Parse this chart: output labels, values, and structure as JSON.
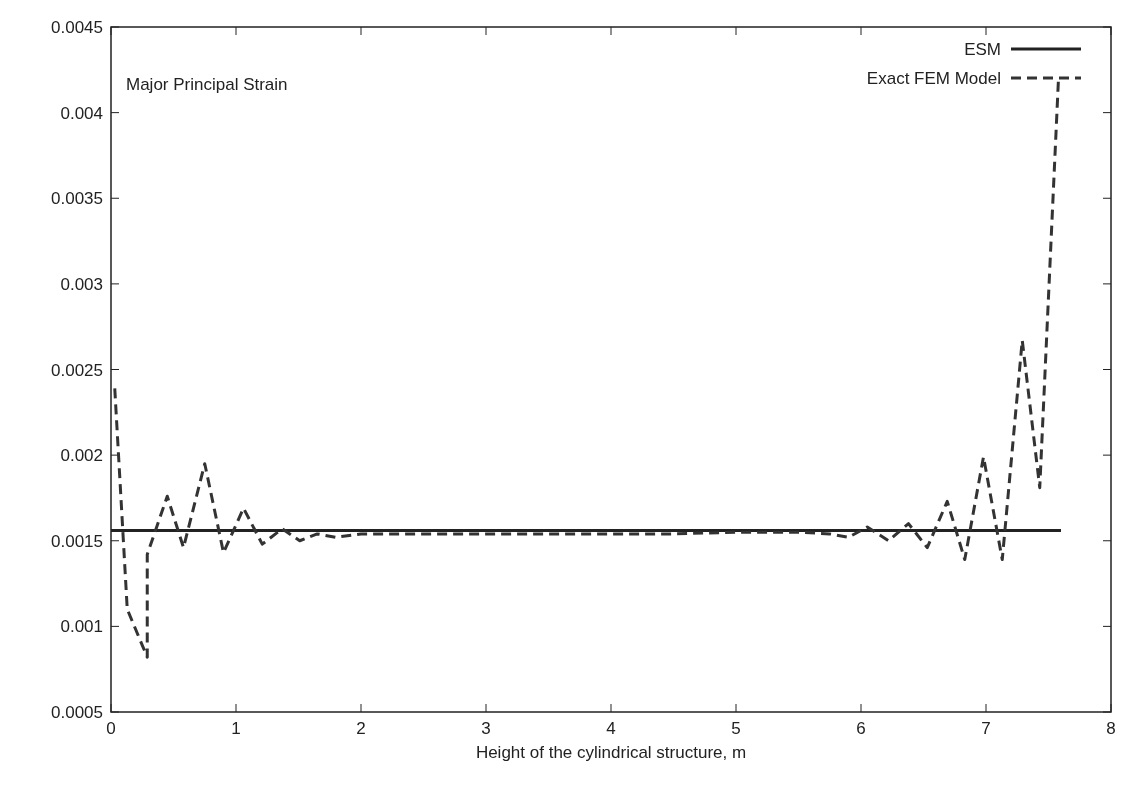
{
  "chart_data": {
    "type": "line",
    "title": "Major Principal Strain",
    "xlabel": "Height of the cylindrical structure, m",
    "xlim": [
      0,
      8
    ],
    "xticks": [
      0,
      1,
      2,
      3,
      4,
      5,
      6,
      7,
      8
    ],
    "ylim": [
      0.0005,
      0.0045
    ],
    "yticks": [
      0.0005,
      0.001,
      0.0015,
      0.002,
      0.0025,
      0.003,
      0.0035,
      0.004,
      0.0045
    ],
    "legend": "top right",
    "grid": false,
    "marker": "none",
    "series": [
      {
        "name": "ESM",
        "color": "#222222",
        "line_style": "solid",
        "x": [
          0,
          7.6
        ],
        "values": [
          0.00156,
          0.00156
        ]
      },
      {
        "name": "Exact FEM Model",
        "color": "#333333",
        "line_style": "dashed",
        "x": [
          0.03,
          0.13,
          0.29,
          0.29,
          0.45,
          0.58,
          0.75,
          0.9,
          1.06,
          1.21,
          1.37,
          1.51,
          1.65,
          1.8,
          2.0,
          2.5,
          3.0,
          3.5,
          4.0,
          4.5,
          5.0,
          5.5,
          5.75,
          5.9,
          6.05,
          6.22,
          6.38,
          6.53,
          6.69,
          6.83,
          6.98,
          7.13,
          7.29,
          7.43,
          7.58
        ],
        "values": [
          0.00239,
          0.0011,
          0.00082,
          0.00142,
          0.00176,
          0.00146,
          0.00195,
          0.00143,
          0.00169,
          0.00148,
          0.00157,
          0.0015,
          0.00154,
          0.00152,
          0.00154,
          0.00154,
          0.00154,
          0.00154,
          0.00154,
          0.00154,
          0.00155,
          0.00155,
          0.00154,
          0.00152,
          0.00158,
          0.0015,
          0.0016,
          0.00146,
          0.00173,
          0.00139,
          0.00199,
          0.00139,
          0.00267,
          0.00181,
          0.0042
        ]
      }
    ]
  }
}
